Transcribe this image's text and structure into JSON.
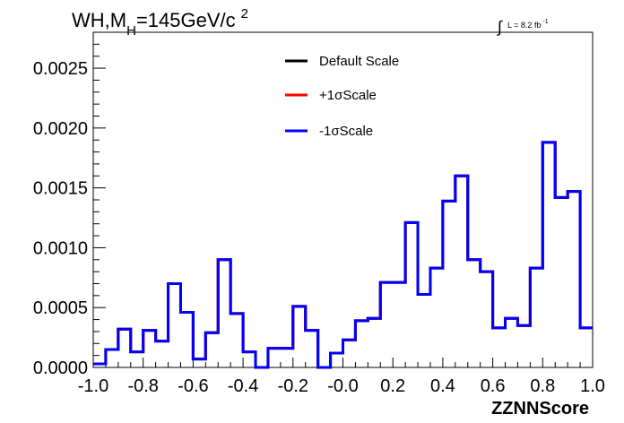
{
  "chart_data": {
    "type": "line",
    "style": "step-histogram",
    "title": {
      "prefix": "WH,M",
      "subscript": "H",
      "value": "=145GeV/c",
      "superscript": "2"
    },
    "lumi": {
      "integral_sign": "∫",
      "text": "L = 8.2 fb",
      "superscript": "-1"
    },
    "xlabel": "ZZNNScore",
    "ylabel": "",
    "xlim": [
      -1.0,
      1.0
    ],
    "ylim": [
      0,
      0.0028
    ],
    "x_ticks": [
      "-1.0",
      "-0.8",
      "-0.6",
      "-0.4",
      "-0.2",
      "-0.0",
      "0.2",
      "0.4",
      "0.6",
      "0.8",
      "1.0"
    ],
    "y_ticks": [
      "0.0000",
      "0.0005",
      "0.0010",
      "0.0015",
      "0.0020",
      "0.0025"
    ],
    "grid": false,
    "legend_position": "top-center",
    "bin_edges": [
      -1.0,
      -0.95,
      -0.9,
      -0.85,
      -0.8,
      -0.75,
      -0.7,
      -0.65,
      -0.6,
      -0.55,
      -0.5,
      -0.45,
      -0.4,
      -0.35,
      -0.3,
      -0.25,
      -0.2,
      -0.15,
      -0.1,
      -0.05,
      0.0,
      0.05,
      0.1,
      0.15,
      0.2,
      0.25,
      0.3,
      0.35,
      0.4,
      0.45,
      0.5,
      0.55,
      0.6,
      0.65,
      0.7,
      0.75,
      0.8,
      0.85,
      0.9,
      0.95,
      1.0
    ],
    "series": [
      {
        "name": "Default Scale",
        "color": "#000000",
        "values": [
          3e-05,
          0.00015,
          0.00032,
          0.00013,
          0.00031,
          0.00022,
          0.0007,
          0.00046,
          7e-05,
          0.00029,
          0.0009,
          0.00045,
          0.00013,
          0.0,
          0.00016,
          0.00016,
          0.00051,
          0.00031,
          0.0,
          0.00012,
          0.00023,
          0.00039,
          0.00041,
          0.00071,
          0.00071,
          0.00121,
          0.00061,
          0.00083,
          0.00139,
          0.0016,
          0.0009,
          0.0008,
          0.00033,
          0.00041,
          0.00035,
          0.00083,
          0.00188,
          0.00142,
          0.00147,
          0.00033
        ]
      },
      {
        "name": "+1σScale",
        "color": "#ff0000",
        "values": [
          3e-05,
          0.00015,
          0.00032,
          0.00013,
          0.00031,
          0.00022,
          0.0007,
          0.00046,
          7e-05,
          0.00029,
          0.0009,
          0.00045,
          0.00013,
          0.0,
          0.00016,
          0.00016,
          0.00051,
          0.00031,
          0.0,
          0.00012,
          0.00023,
          0.00039,
          0.00041,
          0.00071,
          0.00071,
          0.00121,
          0.00061,
          0.00083,
          0.00139,
          0.0016,
          0.0009,
          0.0008,
          0.00033,
          0.00041,
          0.00035,
          0.00083,
          0.00188,
          0.00142,
          0.00147,
          0.00033
        ]
      },
      {
        "name": "-1σScale",
        "color": "#0000ff",
        "values": [
          3e-05,
          0.00015,
          0.00032,
          0.00013,
          0.00031,
          0.00022,
          0.0007,
          0.00046,
          7e-05,
          0.00029,
          0.0009,
          0.00045,
          0.00013,
          0.0,
          0.00016,
          0.00016,
          0.00051,
          0.00031,
          0.0,
          0.00012,
          0.00023,
          0.00039,
          0.00041,
          0.00071,
          0.00071,
          0.00121,
          0.00061,
          0.00083,
          0.00139,
          0.0016,
          0.0009,
          0.0008,
          0.00033,
          0.00041,
          0.00035,
          0.00083,
          0.00188,
          0.00142,
          0.00147,
          0.00033
        ]
      }
    ]
  }
}
